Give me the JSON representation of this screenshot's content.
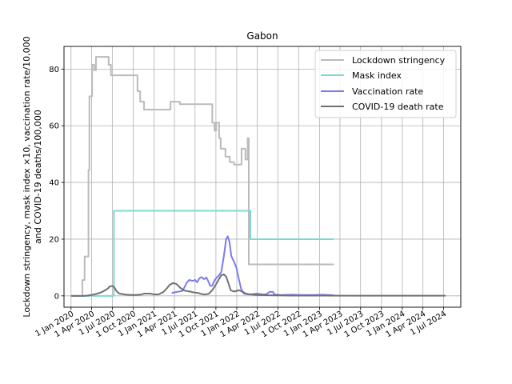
{
  "chart_data": {
    "type": "line",
    "title": "Gabon",
    "ylabel_line1": "Lockdown stringency, mask index ×10, vaccination rate/10,000",
    "ylabel_line2": "and COVID-19 deaths/100,000",
    "xlabel": "",
    "xlim": [
      "2019-12-01",
      "2024-09-15"
    ],
    "ylim": [
      -4,
      88
    ],
    "yticks": [
      0,
      20,
      40,
      60,
      80
    ],
    "xticks": [
      {
        "date": "2020-01-01",
        "label": "1 Jan 2020"
      },
      {
        "date": "2020-04-01",
        "label": "1 Apr 2020"
      },
      {
        "date": "2020-07-01",
        "label": "1 Jul 2020"
      },
      {
        "date": "2020-10-01",
        "label": "1 Oct 2020"
      },
      {
        "date": "2021-01-01",
        "label": "1 Jan 2021"
      },
      {
        "date": "2021-04-01",
        "label": "1 Apr 2021"
      },
      {
        "date": "2021-07-01",
        "label": "1 Jul 2021"
      },
      {
        "date": "2021-10-01",
        "label": "1 Oct 2021"
      },
      {
        "date": "2022-01-01",
        "label": "1 Jan 2022"
      },
      {
        "date": "2022-04-01",
        "label": "1 Apr 2022"
      },
      {
        "date": "2022-07-01",
        "label": "1 Jul 2022"
      },
      {
        "date": "2022-10-01",
        "label": "1 Oct 2022"
      },
      {
        "date": "2023-01-01",
        "label": "1 Jan 2023"
      },
      {
        "date": "2023-04-01",
        "label": "1 Apr 2023"
      },
      {
        "date": "2023-07-01",
        "label": "1 Jul 2023"
      },
      {
        "date": "2023-10-01",
        "label": "1 Oct 2023"
      },
      {
        "date": "2024-01-01",
        "label": "1 Jan 2024"
      },
      {
        "date": "2024-04-01",
        "label": "1 Apr 2024"
      },
      {
        "date": "2024-07-01",
        "label": "1 Jul 2024"
      }
    ],
    "grid": true,
    "legend_position": "top-right",
    "series": [
      {
        "name": "Lockdown stringency",
        "color": "#bbbbbb",
        "step": true,
        "points": [
          [
            "2020-01-01",
            0
          ],
          [
            "2020-02-20",
            0
          ],
          [
            "2020-02-20",
            5.6
          ],
          [
            "2020-03-01",
            5.6
          ],
          [
            "2020-03-01",
            13.9
          ],
          [
            "2020-03-18",
            13.9
          ],
          [
            "2020-03-18",
            44.4
          ],
          [
            "2020-03-22",
            44.4
          ],
          [
            "2020-03-22",
            70.4
          ],
          [
            "2020-04-03",
            70.4
          ],
          [
            "2020-04-03",
            81.5
          ],
          [
            "2020-04-12",
            81.5
          ],
          [
            "2020-04-12",
            79.6
          ],
          [
            "2020-04-20",
            79.6
          ],
          [
            "2020-04-20",
            84.3
          ],
          [
            "2020-06-15",
            84.3
          ],
          [
            "2020-06-15",
            81.5
          ],
          [
            "2020-06-25",
            81.5
          ],
          [
            "2020-06-25",
            77.8
          ],
          [
            "2020-10-20",
            77.8
          ],
          [
            "2020-10-20",
            72.2
          ],
          [
            "2020-11-01",
            72.2
          ],
          [
            "2020-11-01",
            68.5
          ],
          [
            "2020-11-18",
            68.5
          ],
          [
            "2020-11-18",
            65.7
          ],
          [
            "2021-03-15",
            65.7
          ],
          [
            "2021-03-15",
            68.5
          ],
          [
            "2021-04-25",
            68.5
          ],
          [
            "2021-04-25",
            67.6
          ],
          [
            "2021-09-15",
            67.6
          ],
          [
            "2021-09-15",
            61.1
          ],
          [
            "2021-09-25",
            61.1
          ],
          [
            "2021-09-25",
            58.3
          ],
          [
            "2021-10-02",
            58.3
          ],
          [
            "2021-10-02",
            61.1
          ],
          [
            "2021-10-15",
            61.1
          ],
          [
            "2021-10-15",
            55.6
          ],
          [
            "2021-10-22",
            55.6
          ],
          [
            "2021-10-22",
            51.9
          ],
          [
            "2021-11-12",
            51.9
          ],
          [
            "2021-11-12",
            49.1
          ],
          [
            "2021-12-01",
            49.1
          ],
          [
            "2021-12-01",
            47.2
          ],
          [
            "2021-12-20",
            47.2
          ],
          [
            "2021-12-20",
            46.3
          ],
          [
            "2022-01-22",
            46.3
          ],
          [
            "2022-01-22",
            51.9
          ],
          [
            "2022-02-08",
            51.9
          ],
          [
            "2022-02-08",
            48.1
          ],
          [
            "2022-02-18",
            48.1
          ],
          [
            "2022-02-18",
            55.6
          ],
          [
            "2022-02-23",
            55.6
          ],
          [
            "2022-02-23",
            11.1
          ],
          [
            "2023-03-05",
            11.1
          ]
        ]
      },
      {
        "name": "Mask index",
        "color": "#7fd8d0",
        "step": true,
        "points": [
          [
            "2020-01-01",
            0
          ],
          [
            "2020-07-08",
            0
          ],
          [
            "2020-07-08",
            30
          ],
          [
            "2022-03-02",
            30
          ],
          [
            "2022-03-02",
            20
          ],
          [
            "2023-03-05",
            20
          ]
        ]
      },
      {
        "name": "Vaccination rate",
        "color": "#7b7bee",
        "step": false,
        "points": [
          [
            "2021-03-20",
            1.0
          ],
          [
            "2021-04-05",
            1.3
          ],
          [
            "2021-04-20",
            1.5
          ],
          [
            "2021-05-05",
            1.7
          ],
          [
            "2021-05-15",
            3.0
          ],
          [
            "2021-05-25",
            4.6
          ],
          [
            "2021-06-05",
            5.6
          ],
          [
            "2021-06-20",
            5.3
          ],
          [
            "2021-07-01",
            5.6
          ],
          [
            "2021-07-10",
            4.8
          ],
          [
            "2021-07-20",
            6.2
          ],
          [
            "2021-07-30",
            6.6
          ],
          [
            "2021-08-10",
            5.9
          ],
          [
            "2021-08-20",
            6.5
          ],
          [
            "2021-08-28",
            5.2
          ],
          [
            "2021-09-06",
            3.5
          ],
          [
            "2021-09-15",
            3.6
          ],
          [
            "2021-09-25",
            5.5
          ],
          [
            "2021-10-05",
            6.5
          ],
          [
            "2021-10-15",
            7.3
          ],
          [
            "2021-10-25",
            8.5
          ],
          [
            "2021-11-05",
            14.0
          ],
          [
            "2021-11-15",
            20.0
          ],
          [
            "2021-11-22",
            21.0
          ],
          [
            "2021-11-30",
            19.0
          ],
          [
            "2021-12-08",
            14.0
          ],
          [
            "2021-12-20",
            12.0
          ],
          [
            "2021-12-30",
            10.0
          ],
          [
            "2022-01-10",
            6.0
          ],
          [
            "2022-01-20",
            2.5
          ],
          [
            "2022-02-01",
            0.8
          ],
          [
            "2022-02-20",
            0.5
          ],
          [
            "2022-03-10",
            0.6
          ],
          [
            "2022-04-01",
            0.8
          ],
          [
            "2022-04-20",
            0.6
          ],
          [
            "2022-05-10",
            0.5
          ],
          [
            "2022-05-25",
            1.4
          ],
          [
            "2022-06-10",
            1.4
          ],
          [
            "2022-06-15",
            0.5
          ],
          [
            "2022-07-15",
            0.3
          ],
          [
            "2022-09-01",
            0.4
          ],
          [
            "2022-10-15",
            0.3
          ],
          [
            "2022-12-01",
            0.3
          ],
          [
            "2023-01-15",
            0.4
          ],
          [
            "2023-03-05",
            0.2
          ]
        ]
      },
      {
        "name": "COVID-19 death rate",
        "color": "#707070",
        "step": false,
        "points": [
          [
            "2020-01-01",
            0
          ],
          [
            "2020-03-01",
            0
          ],
          [
            "2020-04-01",
            0.3
          ],
          [
            "2020-05-01",
            0.9
          ],
          [
            "2020-05-20",
            1.5
          ],
          [
            "2020-06-10",
            2.5
          ],
          [
            "2020-06-20",
            3.3
          ],
          [
            "2020-07-01",
            3.5
          ],
          [
            "2020-07-10",
            3.0
          ],
          [
            "2020-07-20",
            1.6
          ],
          [
            "2020-08-01",
            0.8
          ],
          [
            "2020-09-01",
            0.4
          ],
          [
            "2020-10-01",
            0.3
          ],
          [
            "2020-11-01",
            0.4
          ],
          [
            "2020-11-20",
            0.8
          ],
          [
            "2020-12-15",
            0.8
          ],
          [
            "2021-01-01",
            0.5
          ],
          [
            "2021-01-20",
            0.5
          ],
          [
            "2021-02-10",
            1.3
          ],
          [
            "2021-02-25",
            2.5
          ],
          [
            "2021-03-10",
            3.8
          ],
          [
            "2021-03-25",
            4.5
          ],
          [
            "2021-04-10",
            4.2
          ],
          [
            "2021-04-25",
            3.0
          ],
          [
            "2021-05-10",
            2.0
          ],
          [
            "2021-05-25",
            1.7
          ],
          [
            "2021-06-10",
            1.5
          ],
          [
            "2021-06-25",
            1.2
          ],
          [
            "2021-07-15",
            1.0
          ],
          [
            "2021-08-01",
            0.6
          ],
          [
            "2021-08-15",
            0.5
          ],
          [
            "2021-09-01",
            0.8
          ],
          [
            "2021-09-15",
            2.0
          ],
          [
            "2021-10-01",
            4.0
          ],
          [
            "2021-10-15",
            6.0
          ],
          [
            "2021-10-25",
            7.3
          ],
          [
            "2021-11-05",
            7.6
          ],
          [
            "2021-11-15",
            6.8
          ],
          [
            "2021-11-25",
            4.5
          ],
          [
            "2021-12-05",
            2.0
          ],
          [
            "2021-12-20",
            1.5
          ],
          [
            "2022-01-10",
            2.0
          ],
          [
            "2022-01-25",
            1.5
          ],
          [
            "2022-02-10",
            0.8
          ],
          [
            "2022-03-01",
            0.5
          ],
          [
            "2022-04-01",
            0.3
          ],
          [
            "2022-06-01",
            0.2
          ],
          [
            "2022-09-01",
            0.1
          ],
          [
            "2023-01-01",
            0.1
          ],
          [
            "2023-06-01",
            0.05
          ],
          [
            "2024-01-01",
            0.05
          ],
          [
            "2024-07-10",
            0.05
          ]
        ]
      }
    ]
  }
}
